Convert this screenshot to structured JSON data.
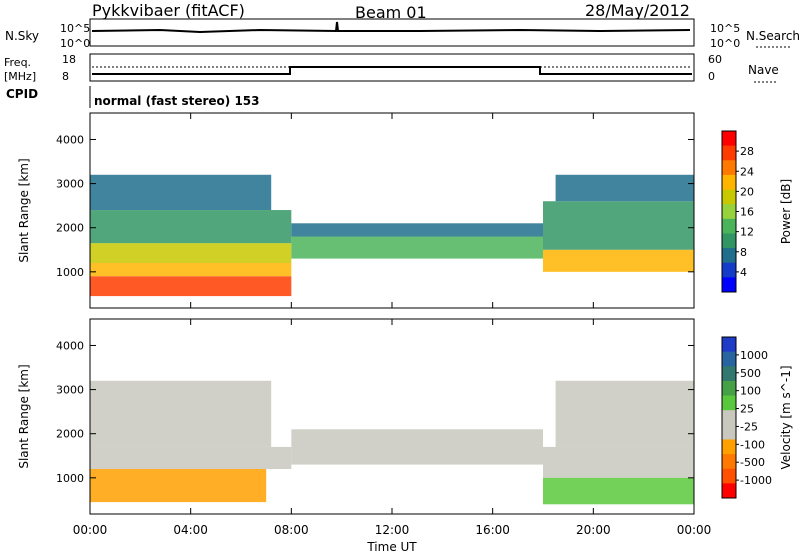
{
  "header": {
    "station": "Pykkvibaer (fitACF)",
    "beam": "Beam 01",
    "date": "28/May/2012"
  },
  "panel_labels": {
    "nsky": "N.Sky",
    "nsearch": "N.Search",
    "freq_top": "Freq.",
    "freq_unit": "[MHz]",
    "nave": "Nave",
    "cpid": "CPID",
    "mode": "normal (fast stereo) 153",
    "nsky_ticks": [
      "10^5",
      "10^0"
    ],
    "nsearch_ticks": [
      "10^5",
      "10^0"
    ],
    "freq_ticks": [
      "18",
      "8"
    ],
    "nave_ticks": [
      "60",
      "0"
    ]
  },
  "colorbars": {
    "power": {
      "label": "Power [dB]",
      "ticks": [
        "28",
        "24",
        "20",
        "16",
        "12",
        "8",
        "4"
      ],
      "colors": [
        "#ff0000",
        "#ff3c00",
        "#ff7800",
        "#ffb400",
        "#c8c800",
        "#96d23c",
        "#4bb45a",
        "#329664",
        "#1e6e8c",
        "#143cc8",
        "#0000ff"
      ]
    },
    "velocity": {
      "label": "Velocity [m s^-1]",
      "ticks": [
        "1000",
        "500",
        "100",
        "25",
        "-25",
        "-100",
        "-500",
        "-1000"
      ],
      "colors": [
        "#1e3cc8",
        "#2864a0",
        "#32786e",
        "#46a046",
        "#5ac83c",
        "#c8c8be",
        "#c8c8be",
        "#ffa000",
        "#ff7800",
        "#ff5000",
        "#ff0000"
      ]
    }
  },
  "chart_data": [
    {
      "type": "heatmap",
      "name": "power",
      "ylabel": "Slant Range [km]",
      "xlabel": "",
      "x_ticks": [
        "00:00",
        "04:00",
        "08:00",
        "12:00",
        "16:00",
        "20:00",
        "00:00"
      ],
      "y_ticks": [
        "1000",
        "2000",
        "3000",
        "4000"
      ],
      "xlim": [
        0,
        24
      ],
      "ylim": [
        180,
        4600
      ],
      "bands": [
        {
          "t0": 0,
          "t1": 8,
          "r0": 450,
          "r1": 900,
          "value": 28
        },
        {
          "t0": 0,
          "t1": 8,
          "r0": 900,
          "r1": 1200,
          "value": 22
        },
        {
          "t0": 0,
          "t1": 8,
          "r0": 1200,
          "r1": 1650,
          "value": 18
        },
        {
          "t0": 0,
          "t1": 8,
          "r0": 1650,
          "r1": 2400,
          "value": 10
        },
        {
          "t0": 0,
          "t1": 7.2,
          "r0": 2400,
          "r1": 3200,
          "value": 8
        },
        {
          "t0": 8,
          "t1": 18,
          "r0": 1300,
          "r1": 1800,
          "value": 14
        },
        {
          "t0": 8,
          "t1": 18,
          "r0": 1800,
          "r1": 2100,
          "value": 8
        },
        {
          "t0": 18,
          "t1": 24,
          "r0": 1000,
          "r1": 1500,
          "value": 22
        },
        {
          "t0": 18,
          "t1": 24,
          "r0": 1500,
          "r1": 2600,
          "value": 10
        },
        {
          "t0": 18.5,
          "t1": 24,
          "r0": 2600,
          "r1": 3200,
          "value": 6
        }
      ]
    },
    {
      "type": "heatmap",
      "name": "velocity",
      "ylabel": "Slant Range [km]",
      "xlabel": "Time UT",
      "x_ticks": [
        "00:00",
        "04:00",
        "08:00",
        "12:00",
        "16:00",
        "20:00",
        "00:00"
      ],
      "y_ticks": [
        "1000",
        "2000",
        "3000",
        "4000"
      ],
      "xlim": [
        0,
        24
      ],
      "ylim": [
        180,
        4600
      ],
      "bands": [
        {
          "t0": 0,
          "t1": 7,
          "r0": 450,
          "r1": 1200,
          "value": -400
        },
        {
          "t0": 0,
          "t1": 8,
          "r0": 1200,
          "r1": 1700,
          "value": 0
        },
        {
          "t0": 0,
          "t1": 7.2,
          "r0": 1700,
          "r1": 3200,
          "value": -60
        },
        {
          "t0": 8,
          "t1": 18,
          "r0": 1300,
          "r1": 2100,
          "value": 0
        },
        {
          "t0": 18,
          "t1": 24,
          "r0": 1000,
          "r1": 1700,
          "value": 0
        },
        {
          "t0": 18,
          "t1": 24,
          "r0": 400,
          "r1": 1000,
          "value": 150
        },
        {
          "t0": 18.5,
          "t1": 24,
          "r0": 1700,
          "r1": 3200,
          "value": 0
        }
      ]
    }
  ]
}
